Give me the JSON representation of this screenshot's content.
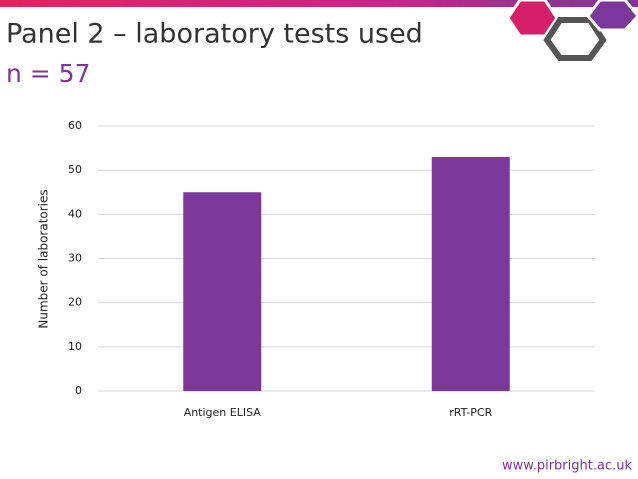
{
  "chart_data": {
    "type": "bar",
    "title": "Panel 2 – laboratory tests used",
    "subtitle": "n = 57",
    "y_label": "Number of laboratories",
    "categories": [
      "Antigen ELISA",
      "rRT-PCR"
    ],
    "values": [
      45,
      53
    ],
    "color": "#7b3799",
    "ylim": [
      0,
      60
    ],
    "yticks": [
      0,
      10,
      20,
      30,
      40,
      50,
      60
    ],
    "grid": true
  },
  "footer": "www.pirbright.ac.uk"
}
